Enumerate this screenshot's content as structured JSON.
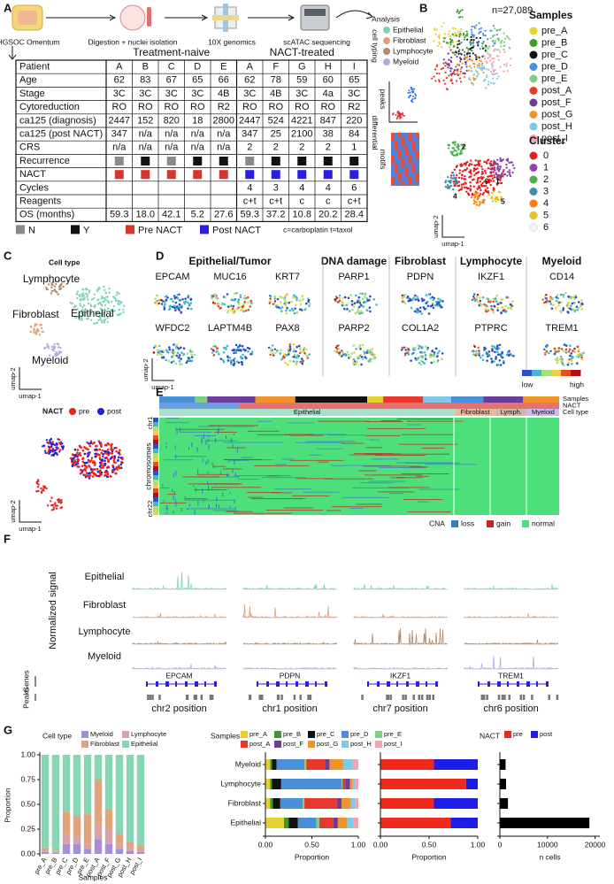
{
  "panels": [
    "A",
    "B",
    "C",
    "D",
    "E",
    "F",
    "G"
  ],
  "workflow": [
    "HGSOC Omentum",
    "Digestion + nuclei isolation",
    "10X genomics",
    "scATAC sequencing",
    "Analysis"
  ],
  "table": {
    "groups": [
      "Treatment-naive",
      "NACT-treated"
    ],
    "header": [
      "Patient",
      "A",
      "B",
      "C",
      "D",
      "E",
      "A",
      "F",
      "G",
      "H",
      "I"
    ],
    "rows": [
      [
        "Age",
        "62",
        "83",
        "67",
        "65",
        "66",
        "62",
        "78",
        "59",
        "60",
        "65"
      ],
      [
        "Stage",
        "3C",
        "3C",
        "3C",
        "3C",
        "4B",
        "3C",
        "4B",
        "3C",
        "4a",
        "3C"
      ],
      [
        "Cytoreduction",
        "RO",
        "RO",
        "RO",
        "RO",
        "R2",
        "RO",
        "RO",
        "RO",
        "RO",
        "R2"
      ],
      [
        "ca125 (diagnosis)",
        "2447",
        "152",
        "820",
        "18",
        "2800",
        "2447",
        "524",
        "4221",
        "847",
        "220"
      ],
      [
        "ca125 (post NACT)",
        "347",
        "n/a",
        "n/a",
        "n/a",
        "n/a",
        "347",
        "25",
        "2100",
        "38",
        "84"
      ],
      [
        "CRS",
        "n/a",
        "n/a",
        "n/a",
        "n/a",
        "n/a",
        "2",
        "2",
        "2",
        "2",
        "1"
      ],
      [
        "Recurrence",
        "N",
        "Y",
        "N",
        "Y",
        "Y",
        "N",
        "Y",
        "Y",
        "Y",
        "Y"
      ],
      [
        "NACT",
        "Pre NACT",
        "Pre NACT",
        "Pre NACT",
        "Pre NACT",
        "Pre NACT",
        "Post NACT",
        "Post NACT",
        "Post NACT",
        "Post NACT",
        "Post NACT"
      ],
      [
        "Cycles",
        null,
        null,
        null,
        null,
        null,
        "4",
        "3",
        "4",
        "4",
        "6"
      ],
      [
        "Reagents",
        null,
        null,
        null,
        null,
        null,
        "c+t",
        "c+t",
        "c",
        "c",
        "c+t"
      ],
      [
        "OS (months)",
        "59.3",
        "18.0",
        "42.1",
        "5.2",
        "27.6",
        "59.3",
        "37.2",
        "10.8",
        "20.2",
        "28.4"
      ]
    ]
  },
  "legend_a": [
    {
      "label": "N",
      "color": "#8a8a8a"
    },
    {
      "label": "Y",
      "color": "#111111"
    },
    {
      "label": "Pre NACT",
      "color": "#d9342b"
    },
    {
      "label": "Post NACT",
      "color": "#2b1de6"
    }
  ],
  "note": "c=carboplatin t=taxol",
  "cell_typing": {
    "label": "cell typing",
    "types": [
      {
        "name": "Epithelial",
        "color": "#7fd4b4"
      },
      {
        "name": "Fibroblast",
        "color": "#e0a07a"
      },
      {
        "name": "Lymphocyte",
        "color": "#b08a6a"
      },
      {
        "name": "Myeloid",
        "color": "#b9a6e0"
      }
    ]
  },
  "side_labels": [
    "differential",
    "peaks",
    "motifs"
  ],
  "panel_b": {
    "n": "n=27,089",
    "samples_title": "Samples",
    "samples": [
      {
        "name": "pre_A",
        "color": "#e6d22e"
      },
      {
        "name": "pre_B",
        "color": "#3a9a2e"
      },
      {
        "name": "pre_C",
        "color": "#111111"
      },
      {
        "name": "pre_D",
        "color": "#4a90d9"
      },
      {
        "name": "pre_E",
        "color": "#7ed07e"
      },
      {
        "name": "post_A",
        "color": "#e8382e"
      },
      {
        "name": "post_F",
        "color": "#6a3d9a"
      },
      {
        "name": "post_G",
        "color": "#f0932b"
      },
      {
        "name": "post_H",
        "color": "#7ec8e8"
      },
      {
        "name": "post_I",
        "color": "#f4a3b0"
      }
    ],
    "cluster_title": "Cluster",
    "clusters": [
      {
        "name": "0",
        "color": "#e41a1c"
      },
      {
        "name": "1",
        "color": "#8e44ad"
      },
      {
        "name": "2",
        "color": "#4daf4a"
      },
      {
        "name": "3",
        "color": "#3a8fa8"
      },
      {
        "name": "4",
        "color": "#ff7f00"
      },
      {
        "name": "5",
        "color": "#e6c21a"
      },
      {
        "name": "6",
        "color": "#f2f2f2"
      }
    ],
    "cluster_labels": [
      "2",
      "4",
      "0",
      "1",
      "5"
    ],
    "xlabel": "umap-1",
    "ylabel": "umap-2"
  },
  "panel_c": {
    "title": "Cell type",
    "labels": [
      "Lymphocyte",
      "Fibroblast",
      "Epithelial",
      "Myeloid"
    ],
    "nact_title": "NACT",
    "nact": [
      {
        "name": "pre",
        "color": "#e8231c"
      },
      {
        "name": "post",
        "color": "#1c22e0"
      }
    ],
    "xlabel": "umap-1",
    "ylabel": "umap-2"
  },
  "panel_d": {
    "groups": [
      "Epithelial/Tumor",
      "DNA damage",
      "Fibroblast",
      "Lymphocyte",
      "Myeloid"
    ],
    "genes_top": [
      "EPCAM",
      "MUC16",
      "KRT7",
      "PARP1",
      "PDPN",
      "IKZF1",
      "CD14"
    ],
    "genes_bottom": [
      "WFDC2",
      "LAPTM4B",
      "PAX8",
      "PARP2",
      "COL1A2",
      "PTPRC",
      "TREM1"
    ],
    "low": "low",
    "high": "high",
    "xlabel": "umap-1",
    "ylabel": "umap-2"
  },
  "panel_e": {
    "tracks": [
      "Samples",
      "NACT",
      "Cell type"
    ],
    "cell_types": [
      "Epithelial",
      "Fibroblast",
      "Lymph.",
      "Myeloid"
    ],
    "chr_labels": [
      "chr1",
      "chromosomes",
      "chr22"
    ],
    "cna_title": "CNA",
    "cna": [
      {
        "name": "loss",
        "color": "#3a78c8"
      },
      {
        "name": "gain",
        "color": "#c82020"
      },
      {
        "name": "normal",
        "color": "#4de07a"
      }
    ]
  },
  "panel_f": {
    "ylabel": "Normalized signal",
    "tracks": [
      "Epithelial",
      "Fibroblast",
      "Lymphocyte",
      "Myeloid"
    ],
    "genes_label": "Genes",
    "peaks_label": "Peaks",
    "genes": [
      "EPCAM",
      "PDPN",
      "IKZF1",
      "TREM1"
    ],
    "positions": [
      "chr2 position",
      "chr1 position",
      "chr7 position",
      "chr6 position"
    ]
  },
  "chart_data": [
    {
      "type": "stacked_bar",
      "legend_title": "Cell type",
      "xlabel": "Samples",
      "ylabel": "Proportion",
      "categories": [
        "pre_A",
        "pre_B",
        "pre_C",
        "pre_D",
        "pre_E",
        "post_A",
        "post_F",
        "post_G",
        "post_H",
        "post_I"
      ],
      "series": [
        {
          "name": "Myeloid",
          "color": "#a48fd6",
          "values": [
            0.02,
            0.01,
            0.1,
            0.1,
            0.05,
            0.15,
            0.1,
            0.05,
            0.03,
            0.02
          ]
        },
        {
          "name": "Lymphocyte",
          "color": "#d6a3a8",
          "values": [
            0.02,
            0.01,
            0.1,
            0.08,
            0.05,
            0.15,
            0.15,
            0.05,
            0.03,
            0.02
          ]
        },
        {
          "name": "Fibroblast",
          "color": "#e0a47c",
          "values": [
            0.02,
            0.01,
            0.22,
            0.2,
            0.3,
            0.45,
            0.2,
            0.1,
            0.06,
            0.04
          ]
        },
        {
          "name": "Epithelial",
          "color": "#86d6b4",
          "values": [
            0.94,
            0.97,
            0.58,
            0.62,
            0.6,
            0.25,
            0.55,
            0.8,
            0.88,
            0.92
          ]
        }
      ],
      "ylim": [
        0,
        1
      ],
      "yticks": [
        {
          "value": 0,
          "label": "0.00"
        },
        {
          "value": 0.25,
          "label": "0.25"
        },
        {
          "value": 0.5,
          "label": "0.50"
        },
        {
          "value": 0.75,
          "label": "0.75"
        },
        {
          "value": 1,
          "label": "1.00"
        }
      ]
    },
    {
      "type": "stacked_barh",
      "legend_title": "Samples",
      "xlabel": "Proportion",
      "categories": [
        "Myeloid",
        "Lymphocyte",
        "Fibroblast",
        "Epithelial"
      ],
      "series": [
        {
          "name": "pre_A",
          "color": "#e6d22e",
          "values": [
            0.05,
            0.05,
            0.05,
            0.2
          ]
        },
        {
          "name": "pre_B",
          "color": "#3a9a2e",
          "values": [
            0.02,
            0.02,
            0.03,
            0.05
          ]
        },
        {
          "name": "pre_C",
          "color": "#111111",
          "values": [
            0.05,
            0.1,
            0.08,
            0.1
          ]
        },
        {
          "name": "pre_D",
          "color": "#4a90d9",
          "values": [
            0.3,
            0.65,
            0.24,
            0.2
          ]
        },
        {
          "name": "pre_E",
          "color": "#7ed07e",
          "values": [
            0.02,
            0.01,
            0.02,
            0.03
          ]
        },
        {
          "name": "post_A",
          "color": "#e8382e",
          "values": [
            0.2,
            0.03,
            0.35,
            0.15
          ]
        },
        {
          "name": "post_F",
          "color": "#6a3d9a",
          "values": [
            0.05,
            0.05,
            0.05,
            0.05
          ]
        },
        {
          "name": "post_G",
          "color": "#f0932b",
          "values": [
            0.15,
            0.03,
            0.1,
            0.1
          ]
        },
        {
          "name": "post_H",
          "color": "#7ec8e8",
          "values": [
            0.1,
            0.03,
            0.05,
            0.07
          ]
        },
        {
          "name": "post_I",
          "color": "#f4a3b0",
          "values": [
            0.06,
            0.03,
            0.03,
            0.05
          ]
        }
      ],
      "xlim": [
        0,
        1
      ],
      "xticks": [
        {
          "value": 0,
          "label": "0.00"
        },
        {
          "value": 0.5,
          "label": "0.50"
        },
        {
          "value": 1,
          "label": "1.00"
        }
      ]
    },
    {
      "type": "stacked_barh",
      "legend_title": "NACT",
      "xlabel": "Proportion",
      "series": [
        {
          "name": "pre",
          "color": "#ee2a1c",
          "values": [
            0.55,
            0.88,
            0.55,
            0.72
          ]
        },
        {
          "name": "post",
          "color": "#1c1ee8",
          "values": [
            0.45,
            0.12,
            0.45,
            0.28
          ]
        }
      ],
      "xlim": [
        0,
        1
      ],
      "xticks": [
        {
          "value": 0,
          "label": "0.00"
        },
        {
          "value": 0.5,
          "label": "0.50"
        },
        {
          "value": 1,
          "label": "1.00"
        }
      ]
    },
    {
      "type": "barh",
      "xlabel": "n cells",
      "color": "#000000",
      "values": [
        1200,
        1300,
        1700,
        18800
      ],
      "xlim": [
        0,
        21000
      ],
      "xticks": [
        0,
        10000,
        20000
      ]
    }
  ]
}
